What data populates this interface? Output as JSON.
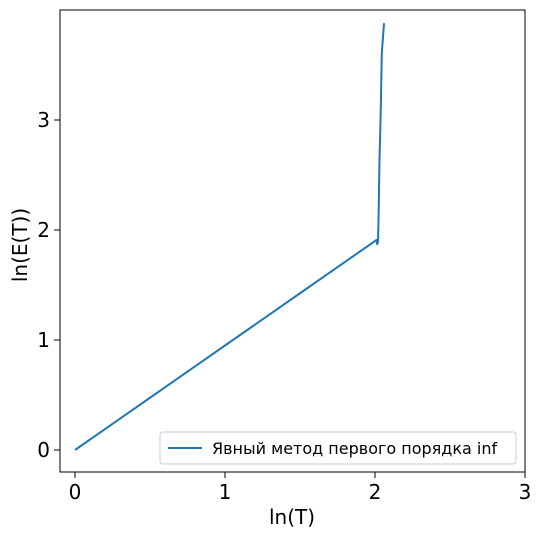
{
  "chart_data": {
    "type": "line",
    "title": "",
    "xlabel": "ln(T)",
    "ylabel": "ln(E(T))",
    "xlim": [
      -0.1,
      3.0
    ],
    "ylim": [
      -0.2,
      4.0
    ],
    "xticks": [
      0,
      1,
      2,
      3
    ],
    "yticks": [
      0,
      1,
      2,
      3
    ],
    "grid": false,
    "legend_position": "lower-right",
    "series": [
      {
        "name": "Явный метод первого порядка inf",
        "color": "#1f77b4",
        "points": [
          [
            0.0,
            0.0
          ],
          [
            0.5,
            0.475
          ],
          [
            1.0,
            0.95
          ],
          [
            1.5,
            1.425
          ],
          [
            2.0,
            1.9
          ],
          [
            2.01,
            1.91
          ],
          [
            2.015,
            1.87
          ],
          [
            2.02,
            1.9
          ],
          [
            2.025,
            2.2
          ],
          [
            2.03,
            2.65
          ],
          [
            2.035,
            2.9
          ],
          [
            2.04,
            3.2
          ],
          [
            2.045,
            3.6
          ],
          [
            2.06,
            3.88
          ]
        ]
      }
    ]
  }
}
